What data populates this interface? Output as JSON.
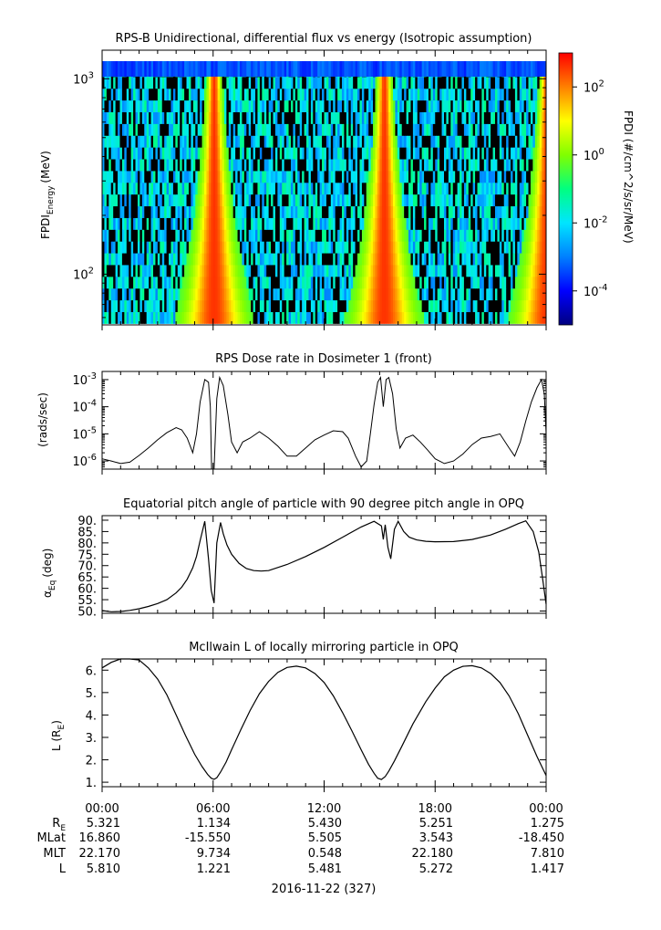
{
  "chart_data": [
    {
      "type": "heatmap",
      "title": "RPS-B  Unidirectional, differential flux vs energy (Isotropic assumption)",
      "ylabel_main": "FPDI",
      "ylabel_sub": "Energy",
      "ylabel_unit": "(MeV)",
      "yscale": "log",
      "ylim": [
        55,
        1400
      ],
      "yticks": [
        {
          "value": 100,
          "base": "10",
          "exp": "2"
        },
        {
          "value": 1000,
          "base": "10",
          "exp": "3"
        }
      ],
      "colorbar_label": "FPDI (#/cm^2/s/sr/MeV)",
      "colorbar_scale": "log",
      "colorbar_range": [
        1e-05,
        1000
      ],
      "colorbar_ticks": [
        {
          "value": 0.0001,
          "base": "10",
          "exp": "-4"
        },
        {
          "value": 0.01,
          "base": "10",
          "exp": "-2"
        },
        {
          "value": 1,
          "base": "10",
          "exp": "0"
        },
        {
          "value": 100,
          "base": "10",
          "exp": "2"
        }
      ],
      "colors": [
        "#000080",
        "#0000ff",
        "#0080ff",
        "#00e5ff",
        "#00ff80",
        "#80ff00",
        "#ffff00",
        "#ff8000",
        "#ff0000"
      ],
      "belt_crossings_hours": [
        6.0,
        15.2,
        24.0
      ]
    },
    {
      "type": "line",
      "title": "RPS  Dose rate in Dosimeter 1 (front)",
      "ylabel": "(rads/sec)",
      "yscale": "log",
      "ylim": [
        5e-07,
        0.002
      ],
      "yticks": [
        {
          "value": 1e-06,
          "base": "10",
          "exp": "-6"
        },
        {
          "value": 1e-05,
          "base": "10",
          "exp": "-5"
        },
        {
          "value": 0.0001,
          "base": "10",
          "exp": "-4"
        },
        {
          "value": 0.001,
          "base": "10",
          "exp": "-3"
        }
      ],
      "series": [
        {
          "x": [
            0.0,
            0.5,
            1.0,
            1.5,
            2.0,
            2.5,
            3.0,
            3.5,
            4.0,
            4.3,
            4.6,
            4.9,
            5.1,
            5.3,
            5.55,
            5.75,
            5.85,
            5.92,
            6.05,
            6.2,
            6.35,
            6.55,
            6.8,
            7.0,
            7.3,
            7.6,
            8.0,
            8.5,
            9.0,
            9.5,
            10.0,
            10.5,
            11.0,
            11.5,
            12.0,
            12.5,
            13.0,
            13.3,
            13.7,
            14.0,
            14.3,
            14.5,
            14.7,
            14.9,
            15.05,
            15.2,
            15.35,
            15.5,
            15.7,
            15.9,
            16.1,
            16.4,
            16.8,
            17.2,
            17.6,
            18.0,
            18.5,
            19.0,
            19.5,
            20.0,
            20.5,
            21.0,
            21.5,
            22.0,
            22.3,
            22.6,
            22.9,
            23.2,
            23.5,
            23.75,
            23.9,
            24.0
          ],
          "y": [
            1.2e-06,
            1e-06,
            8e-07,
            9e-07,
            1.6e-06,
            3e-06,
            6e-06,
            1.1e-05,
            1.7e-05,
            1.4e-05,
            7e-06,
            2e-06,
            1e-05,
            0.00015,
            0.001,
            0.0008,
            0.0001,
            3e-07,
            5e-07,
            0.0002,
            0.0012,
            0.0006,
            5e-05,
            5e-06,
            2e-06,
            5e-06,
            7e-06,
            1.2e-05,
            7e-06,
            3.5e-06,
            1.5e-06,
            1.5e-06,
            3e-06,
            6e-06,
            9e-06,
            1.3e-05,
            1.2e-05,
            7e-06,
            1.5e-06,
            6e-07,
            1e-06,
            1e-05,
            0.00012,
            0.0008,
            0.0012,
            0.0001,
            0.001,
            0.0012,
            0.0003,
            1.5e-05,
            3e-06,
            7e-06,
            9e-06,
            5e-06,
            2.5e-06,
            1.2e-06,
            8e-07,
            1e-06,
            1.8e-06,
            4e-06,
            7e-06,
            8e-06,
            1e-05,
            3e-06,
            1.5e-06,
            5e-06,
            3e-05,
            0.00015,
            0.0005,
            0.001,
            0.0003,
            1e-05
          ]
        }
      ]
    },
    {
      "type": "line",
      "title": "Equatorial pitch angle of particle with 90 degree pitch angle in OPQ",
      "ylabel_main": "α",
      "ylabel_sub": "Eq",
      "ylabel_unit": "(deg)",
      "ylim": [
        49,
        92
      ],
      "yticks": [
        50,
        55,
        60,
        65,
        70,
        75,
        80,
        85,
        90
      ],
      "ytick_labels": [
        "50.",
        "55.",
        "60.",
        "65.",
        "70.",
        "75.",
        "80.",
        "85.",
        "90."
      ],
      "series": [
        {
          "x": [
            0.0,
            0.5,
            1.0,
            1.5,
            2.0,
            2.5,
            3.0,
            3.5,
            4.0,
            4.3,
            4.6,
            4.9,
            5.1,
            5.3,
            5.55,
            5.75,
            5.9,
            6.05,
            6.2,
            6.4,
            6.55,
            6.75,
            7.0,
            7.4,
            7.8,
            8.2,
            8.6,
            9.0,
            10.0,
            11.0,
            12.0,
            13.0,
            14.0,
            14.7,
            15.1,
            15.2,
            15.3,
            15.45,
            15.6,
            15.8,
            16.0,
            16.3,
            16.6,
            17.0,
            17.5,
            18.0,
            19.0,
            20.0,
            21.0,
            21.8,
            22.5,
            22.9,
            23.3,
            23.6,
            23.8,
            24.0
          ],
          "y": [
            50.2,
            49.7,
            49.8,
            50.3,
            51.0,
            52.0,
            53.3,
            55.0,
            58.0,
            60.5,
            64.0,
            69.0,
            74.0,
            81.0,
            89.5,
            73.0,
            59.0,
            53.5,
            80.0,
            89.0,
            84.0,
            79.0,
            75.0,
            71.0,
            68.7,
            67.8,
            67.6,
            67.8,
            70.5,
            74.0,
            78.0,
            82.5,
            87.0,
            89.5,
            87.5,
            81.5,
            88.0,
            78.0,
            73.0,
            86.0,
            89.5,
            85.0,
            82.5,
            81.3,
            80.7,
            80.5,
            80.6,
            81.5,
            83.5,
            86.0,
            88.5,
            89.7,
            85.0,
            76.0,
            65.0,
            53.0
          ]
        }
      ]
    },
    {
      "type": "line",
      "title": "McIlwain L of locally mirroring particle in OPQ",
      "ylabel_main": "L (R",
      "ylabel_sub": "E",
      "ylabel_unit": ")",
      "ylim": [
        0.8,
        6.5
      ],
      "yticks": [
        1.0,
        2.0,
        3.0,
        4.0,
        5.0,
        6.0
      ],
      "ytick_labels": [
        "1.",
        "2.",
        "3.",
        "4.",
        "5.",
        "6."
      ],
      "series": [
        {
          "x": [
            0.0,
            0.5,
            1.0,
            1.5,
            2.0,
            2.5,
            3.0,
            3.5,
            4.0,
            4.5,
            5.0,
            5.4,
            5.7,
            5.9,
            6.05,
            6.2,
            6.4,
            6.7,
            7.0,
            7.5,
            8.0,
            8.5,
            9.0,
            9.5,
            10.0,
            10.5,
            11.0,
            11.5,
            12.0,
            12.5,
            13.0,
            13.5,
            14.0,
            14.4,
            14.7,
            14.9,
            15.1,
            15.3,
            15.5,
            15.8,
            16.2,
            16.8,
            17.5,
            18.0,
            18.5,
            19.0,
            19.5,
            20.0,
            20.5,
            21.0,
            21.5,
            22.0,
            22.5,
            23.0,
            23.5,
            24.0
          ],
          "y": [
            6.1,
            6.35,
            6.5,
            6.5,
            6.45,
            6.1,
            5.6,
            4.9,
            4.0,
            3.1,
            2.25,
            1.7,
            1.35,
            1.18,
            1.13,
            1.2,
            1.45,
            1.9,
            2.45,
            3.35,
            4.2,
            4.95,
            5.5,
            5.9,
            6.12,
            6.18,
            6.1,
            5.85,
            5.45,
            4.85,
            4.1,
            3.3,
            2.45,
            1.8,
            1.4,
            1.18,
            1.12,
            1.25,
            1.5,
            1.95,
            2.6,
            3.6,
            4.6,
            5.2,
            5.7,
            6.0,
            6.17,
            6.2,
            6.1,
            5.85,
            5.45,
            4.85,
            4.05,
            3.1,
            2.15,
            1.3
          ]
        }
      ]
    }
  ],
  "x_axis": {
    "range_hours": [
      0,
      24
    ],
    "tick_labels": [
      "00:00",
      "06:00",
      "12:00",
      "18:00",
      "00:00"
    ],
    "date_label": "2016-11-22 (327)"
  },
  "ephemeris": {
    "rows": [
      {
        "label_main": "R",
        "label_sub": "E",
        "values": [
          "5.321",
          "1.134",
          "5.430",
          "5.251",
          "1.275"
        ]
      },
      {
        "label_main": "MLat",
        "label_sub": "",
        "values": [
          "16.860",
          "-15.550",
          "5.505",
          "3.543",
          "-18.450"
        ]
      },
      {
        "label_main": "MLT",
        "label_sub": "",
        "values": [
          "22.170",
          "9.734",
          "0.548",
          "22.180",
          "7.810"
        ]
      },
      {
        "label_main": "L",
        "label_sub": "",
        "values": [
          "5.810",
          "1.221",
          "5.481",
          "5.272",
          "1.417"
        ]
      }
    ]
  }
}
